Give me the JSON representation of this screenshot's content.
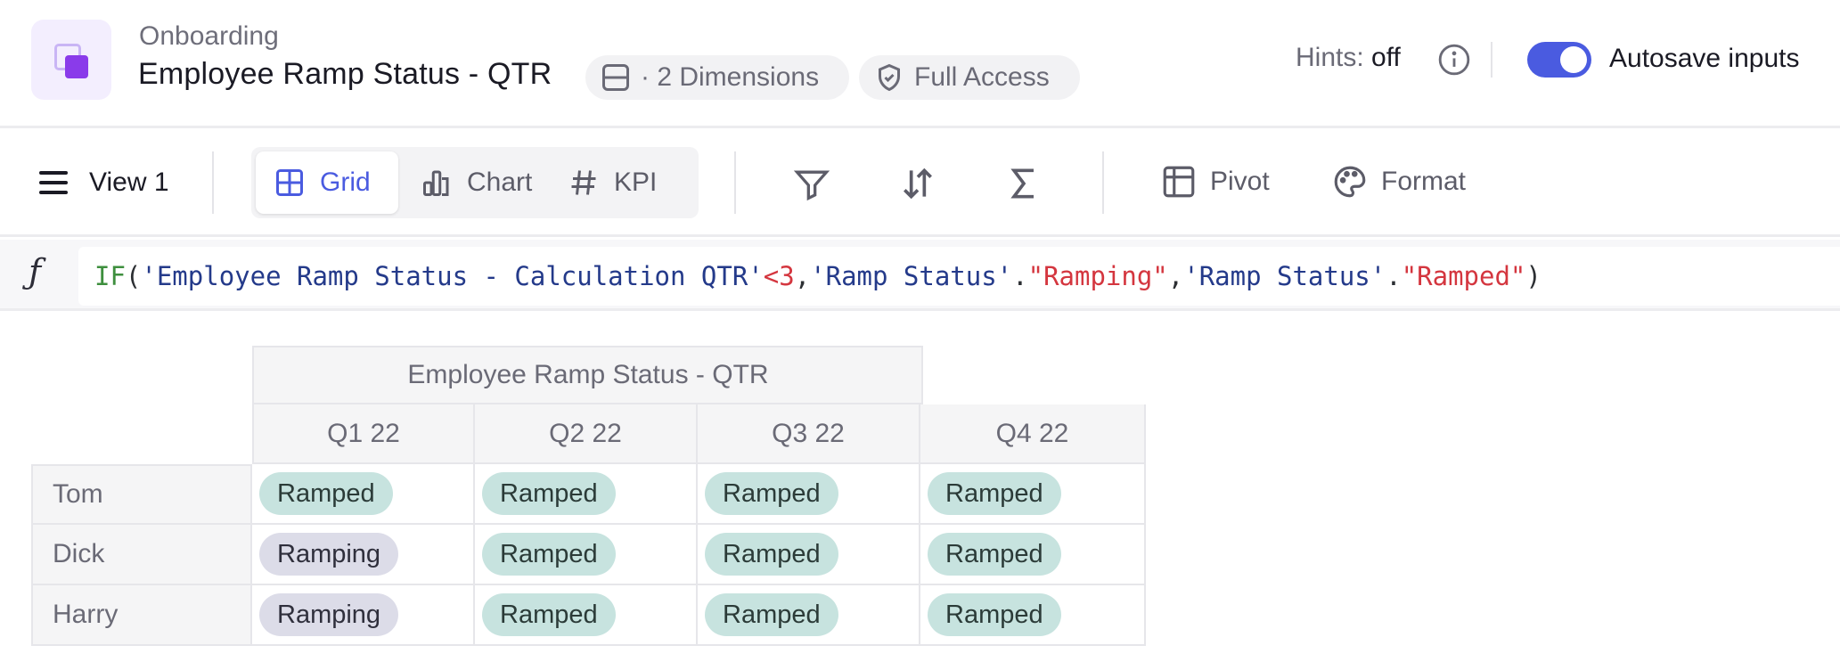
{
  "header": {
    "breadcrumb": "Onboarding",
    "title": "Employee Ramp Status - QTR",
    "dimensions_chip": "· 2 Dimensions",
    "access_chip": "Full Access",
    "hints_label": "Hints:",
    "hints_value": "off",
    "autosave_label": "Autosave inputs",
    "autosave_enabled": true,
    "accent_color": "#4a5be0",
    "app_icon_color": "#8a3bea"
  },
  "toolbar": {
    "view_label": "View 1",
    "view_modes": [
      {
        "label": "Grid",
        "icon": "grid-icon",
        "active": true
      },
      {
        "label": "Chart",
        "icon": "bar-chart-icon",
        "active": false
      },
      {
        "label": "KPI",
        "icon": "hash-icon",
        "active": false
      }
    ],
    "icon_tools": [
      "filter-icon",
      "sort-icon",
      "sum-icon"
    ],
    "pivot_label": "Pivot",
    "format_label": "Format"
  },
  "formula": {
    "tokens": {
      "fn": "IF",
      "open": "(",
      "ref1": "'Employee Ramp Status - Calculation QTR'",
      "op": "<3",
      "comma1": ",",
      "ref2": "'Ramp Status'",
      "dot1": ".",
      "str1": "\"Ramping\"",
      "comma2": ",",
      "ref3": "'Ramp Status'",
      "dot2": ".",
      "str2": "\"Ramped\"",
      "close": ")"
    }
  },
  "grid": {
    "title": "Employee Ramp Status - QTR",
    "columns": [
      "Q1 22",
      "Q2 22",
      "Q3 22",
      "Q4 22"
    ],
    "rows": [
      {
        "name": "Tom",
        "cells": [
          "Ramped",
          "Ramped",
          "Ramped",
          "Ramped"
        ]
      },
      {
        "name": "Dick",
        "cells": [
          "Ramping",
          "Ramped",
          "Ramped",
          "Ramped"
        ]
      },
      {
        "name": "Harry",
        "cells": [
          "Ramping",
          "Ramped",
          "Ramped",
          "Ramped"
        ]
      }
    ],
    "status_colors": {
      "Ramped": "#c7e3df",
      "Ramping": "#dcdce8"
    }
  }
}
